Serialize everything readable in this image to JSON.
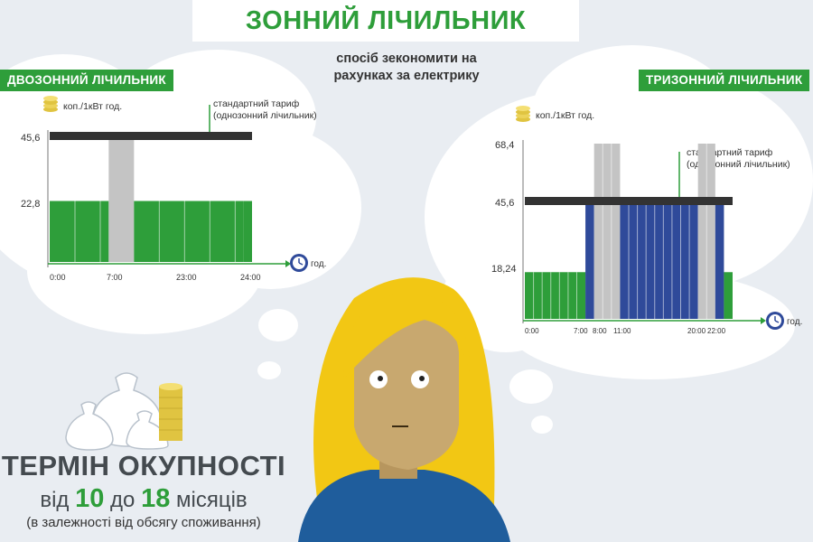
{
  "title": "ЗОННИЙ ЛІЧИЛЬНИК",
  "subtitle": {
    "line1": "спосіб зекономити на",
    "line2": "рахунках за електрику"
  },
  "colors": {
    "green": "#2e9e3a",
    "gray": "#c4c4c4",
    "blue": "#2f4a9a",
    "dark_line": "#333333",
    "hair": "#f2c714",
    "skin": "#c8a86f",
    "shirt": "#1f5d9c"
  },
  "two_zone": {
    "badge": "ДВОЗОННИЙ ЛІЧИЛЬНИК",
    "unit_label": "коп./1кВт год.",
    "time_label": "год.",
    "standard_tariff": {
      "line1": "стандартний тариф",
      "line2": "(однозонний лічильник)",
      "value": 45.6
    },
    "y_ticks": [
      "45,6",
      "22,8"
    ],
    "x_ticks": [
      "0:00",
      "7:00",
      "23:00",
      "24:00"
    ]
  },
  "three_zone": {
    "badge": "ТРИЗОННИЙ ЛІЧИЛЬНИК",
    "unit_label": "коп./1кВт год.",
    "time_label": "год.",
    "standard_tariff": {
      "line1": "стандартний тариф",
      "line2": "(однозонний лічильник)",
      "value": 45.6
    },
    "y_ticks": [
      "68,4",
      "45,6",
      "18,24"
    ],
    "x_ticks": [
      "0:00",
      "7:00",
      "8:00",
      "11:00",
      "20:00",
      "22:00"
    ]
  },
  "chart_data": [
    {
      "type": "bar",
      "title": "ДВОЗОННИЙ ЛІЧИЛЬНИК",
      "ylabel": "коп./1кВт год.",
      "xlabel": "год.",
      "ylim": [
        0,
        45.6
      ],
      "reference_line": {
        "value": 45.6
      },
      "series": [
        {
          "x_start": 0,
          "x_end": 7,
          "value": 22.8,
          "color": "green"
        },
        {
          "x_start": 7,
          "x_end": 10,
          "value": 45.6,
          "color": "gray"
        },
        {
          "x_start": 10,
          "x_end": 23,
          "value": 22.8,
          "color": "green"
        },
        {
          "x_start": 23,
          "x_end": 24,
          "value": 22.8,
          "color": "green"
        }
      ]
    },
    {
      "type": "bar",
      "title": "ТРИЗОННИЙ ЛІЧИЛЬНИК",
      "ylabel": "коп./1кВт год.",
      "xlabel": "год.",
      "ylim": [
        0,
        68.4
      ],
      "reference_line": {
        "value": 45.6
      },
      "series": [
        {
          "x_start": 0,
          "x_end": 7,
          "value": 18.24,
          "color": "green"
        },
        {
          "x_start": 7,
          "x_end": 8,
          "value": 45.6,
          "color": "blue"
        },
        {
          "x_start": 8,
          "x_end": 11,
          "value": 68.4,
          "color": "gray"
        },
        {
          "x_start": 11,
          "x_end": 20,
          "value": 45.6,
          "color": "blue"
        },
        {
          "x_start": 20,
          "x_end": 22,
          "value": 68.4,
          "color": "gray"
        },
        {
          "x_start": 22,
          "x_end": 23,
          "value": 45.6,
          "color": "blue"
        },
        {
          "x_start": 23,
          "x_end": 24,
          "value": 18.24,
          "color": "green"
        }
      ]
    }
  ],
  "payback": {
    "heading": "ТЕРМІН ОКУПНОСТІ",
    "from_word": "від",
    "from_value": "10",
    "to_word": "до",
    "to_value": "18",
    "months": "місяців",
    "note": "(в залежності від обсягу споживання)"
  }
}
